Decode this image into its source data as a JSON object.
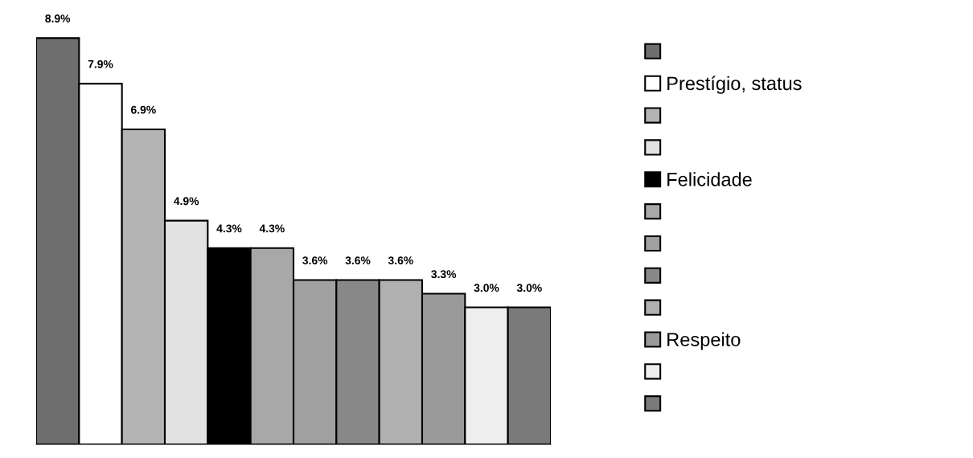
{
  "chart_data": {
    "type": "bar",
    "categories": [
      null
    ],
    "series": [
      {
        "color": "#6e6e6e",
        "values": [
          8.9
        ],
        "value_labels": [
          "8.9%"
        ]
      },
      {
        "name": "Prestígio, status",
        "color": "#ffffff",
        "values": [
          7.9
        ],
        "value_labels": [
          "7.9%"
        ]
      },
      {
        "color": "#b4b4b4",
        "values": [
          6.9
        ],
        "value_labels": [
          "6.9%"
        ]
      },
      {
        "color": "#e2e2e2",
        "values": [
          4.9
        ],
        "value_labels": [
          "4.9%"
        ]
      },
      {
        "name": "Felicidade",
        "color": "#000000",
        "values": [
          4.3
        ],
        "value_labels": [
          "4.3%"
        ]
      },
      {
        "color": "#a8a8a8",
        "values": [
          4.3
        ],
        "value_labels": [
          "4.3%"
        ]
      },
      {
        "color": "#a0a0a0",
        "values": [
          3.6
        ],
        "value_labels": [
          "3.6%"
        ]
      },
      {
        "color": "#888888",
        "values": [
          3.6
        ],
        "value_labels": [
          "3.6%"
        ]
      },
      {
        "color": "#b0b0b0",
        "values": [
          3.6
        ],
        "value_labels": [
          "3.6%"
        ]
      },
      {
        "name": "Respeito",
        "color": "#9a9a9a",
        "values": [
          3.3
        ],
        "value_labels": [
          "3.3%"
        ]
      },
      {
        "color": "#eeeeee",
        "values": [
          3.0
        ],
        "value_labels": [
          "3.0%"
        ]
      },
      {
        "color": "#7a7a7a",
        "values": [
          3.0
        ],
        "value_labels": [
          "3.0%"
        ]
      }
    ],
    "legend": "right",
    "grid": false
  }
}
